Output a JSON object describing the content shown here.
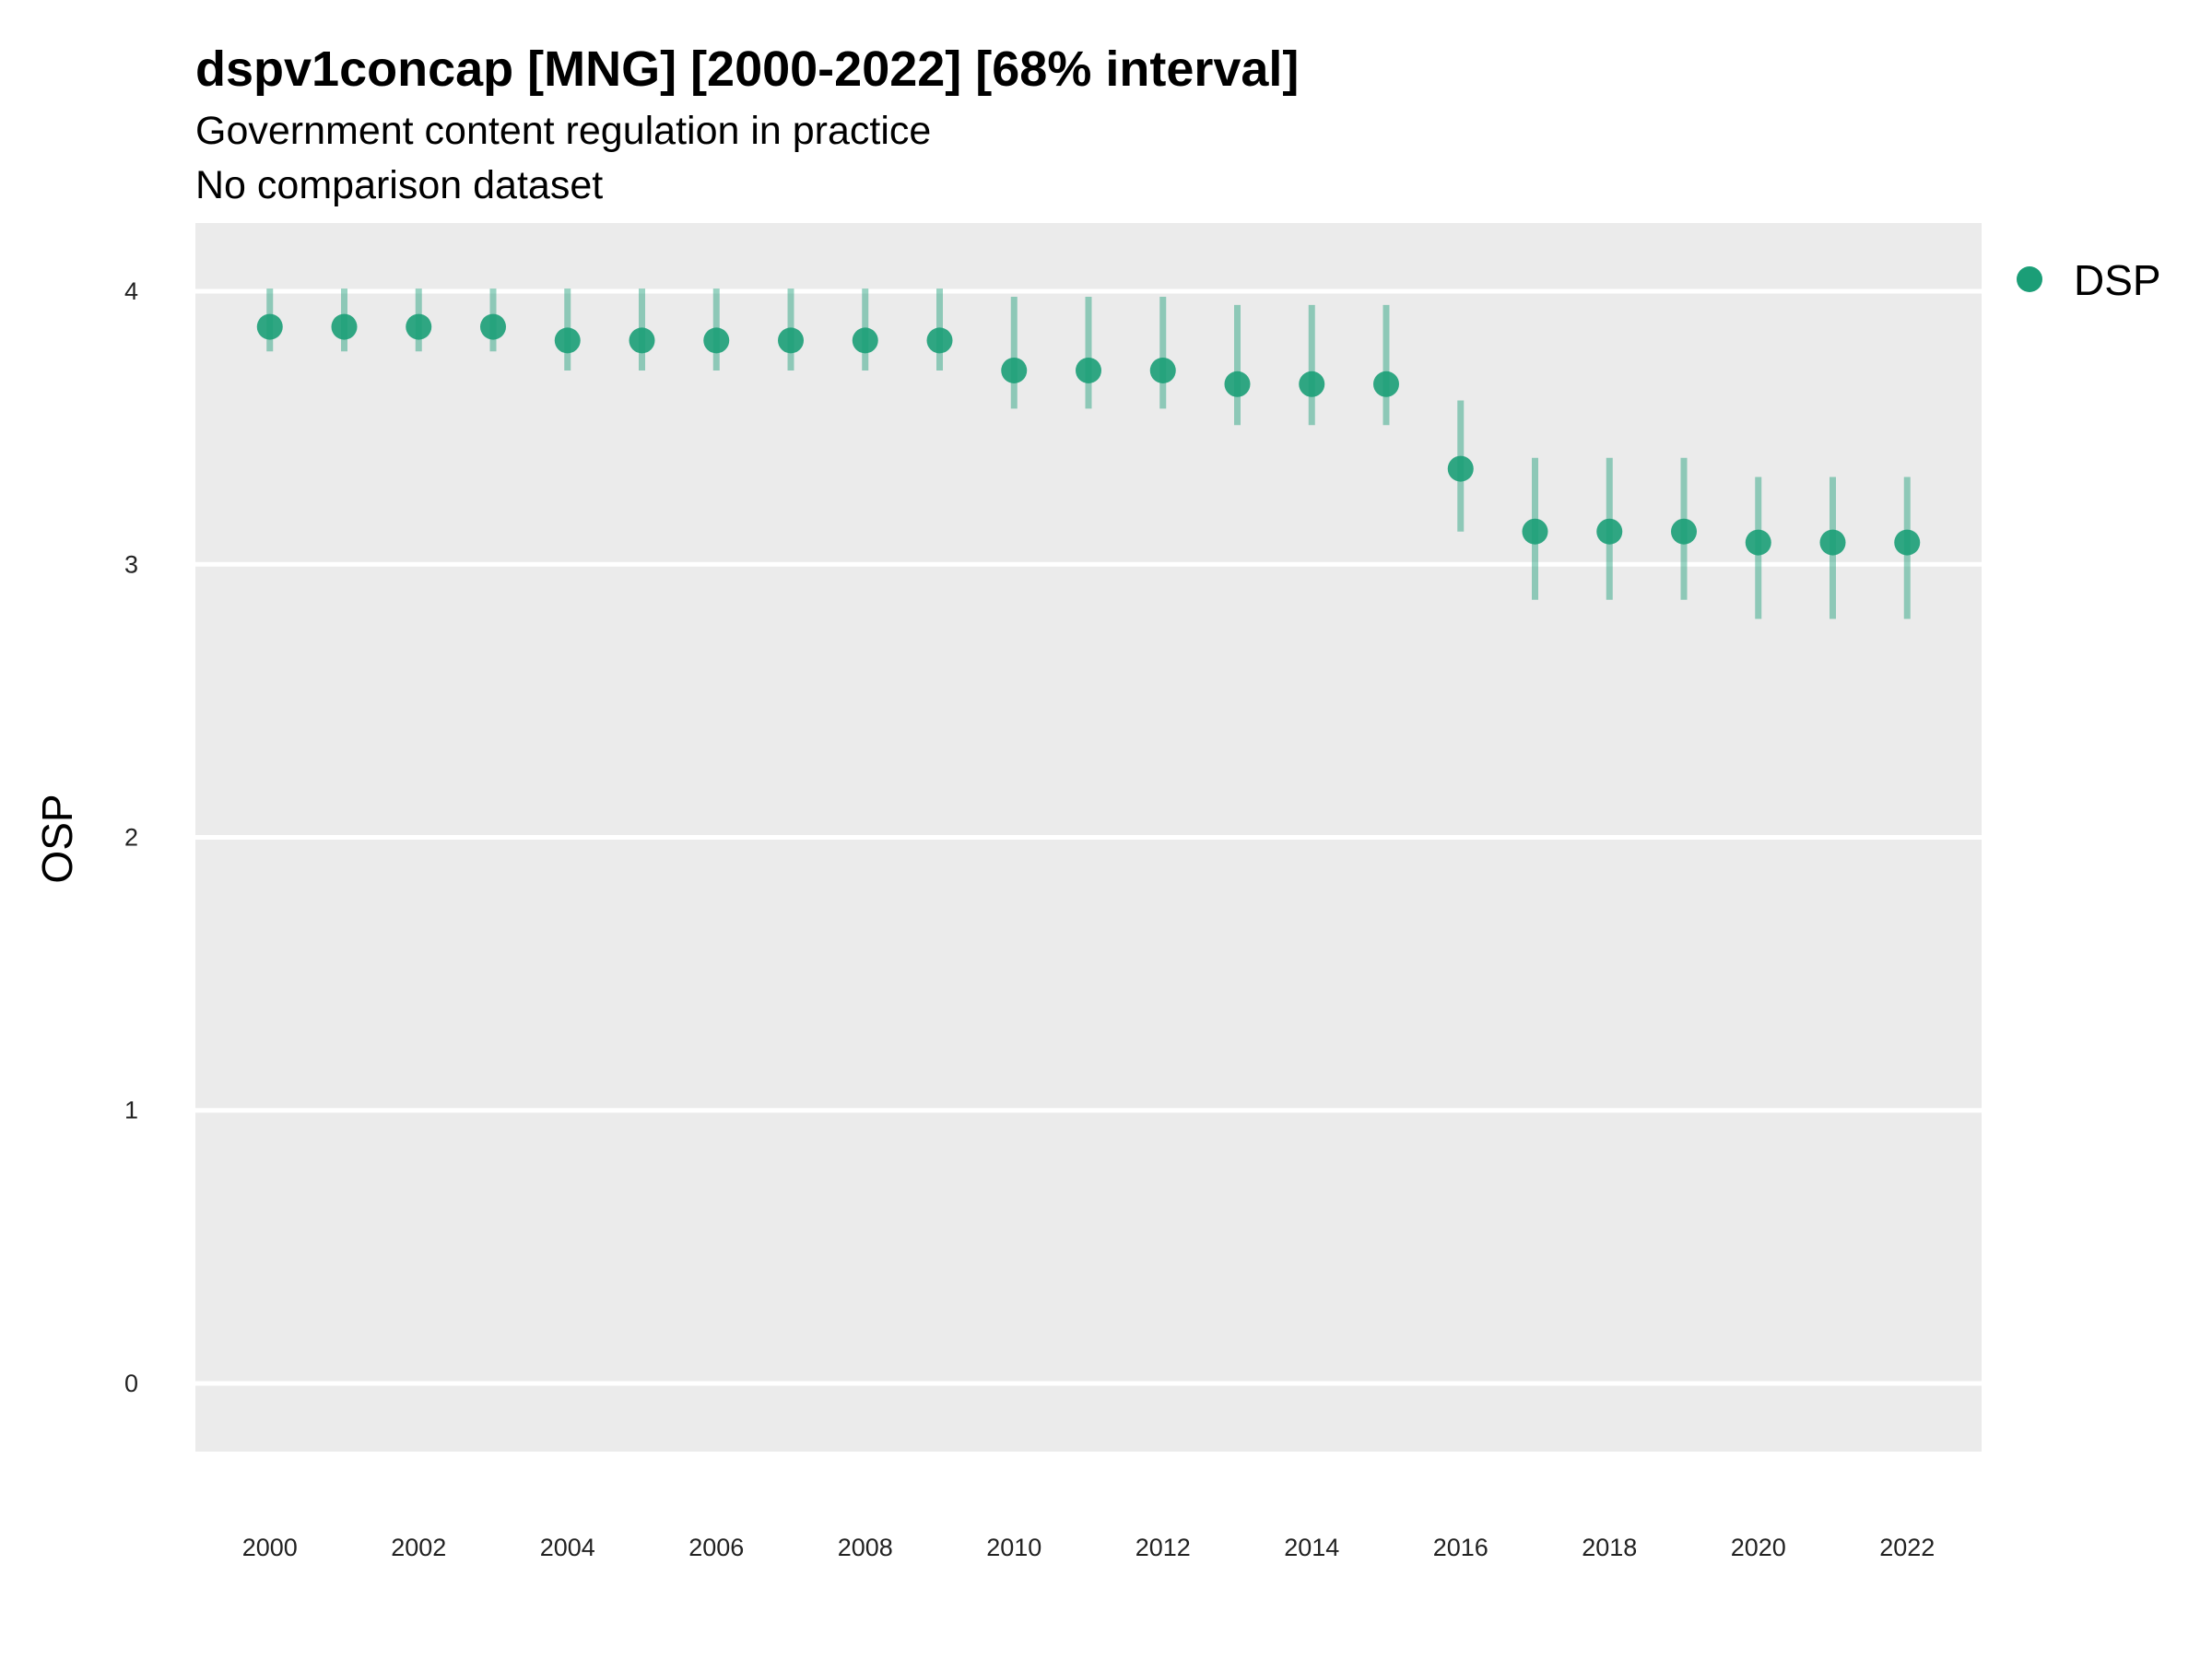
{
  "chart_data": {
    "type": "scatter",
    "title": "dspv1concap [MNG] [2000-2022] [68% interval]",
    "subtitle": "Government content regulation in practice",
    "subtitle2": "No comparison dataset",
    "xlabel": "",
    "ylabel": "OSP",
    "xlim": [
      1999,
      2023
    ],
    "ylim": [
      -0.25,
      4.25
    ],
    "x_ticks": [
      2000,
      2002,
      2004,
      2006,
      2008,
      2010,
      2012,
      2014,
      2016,
      2018,
      2020,
      2022
    ],
    "y_ticks": [
      0,
      1,
      2,
      3,
      4
    ],
    "grid": true,
    "legend_position": "right",
    "colors": {
      "series": "#1b9e77",
      "panel": "#ebebeb",
      "grid": "#ffffff"
    },
    "series": [
      {
        "name": "DSP",
        "x": [
          2000,
          2001,
          2002,
          2003,
          2004,
          2005,
          2006,
          2007,
          2008,
          2009,
          2010,
          2011,
          2012,
          2013,
          2014,
          2015,
          2016,
          2017,
          2018,
          2019,
          2020,
          2021,
          2022
        ],
        "values": [
          3.87,
          3.87,
          3.87,
          3.87,
          3.82,
          3.82,
          3.82,
          3.82,
          3.82,
          3.82,
          3.71,
          3.71,
          3.71,
          3.66,
          3.66,
          3.66,
          3.35,
          3.12,
          3.12,
          3.12,
          3.08,
          3.08,
          3.08
        ],
        "lower": [
          3.78,
          3.78,
          3.78,
          3.78,
          3.71,
          3.71,
          3.71,
          3.71,
          3.71,
          3.71,
          3.57,
          3.57,
          3.57,
          3.51,
          3.51,
          3.51,
          3.12,
          2.87,
          2.87,
          2.87,
          2.8,
          2.8,
          2.8
        ],
        "upper": [
          4.01,
          4.01,
          4.01,
          4.01,
          4.01,
          4.01,
          4.01,
          4.01,
          4.01,
          4.01,
          3.98,
          3.98,
          3.98,
          3.95,
          3.95,
          3.95,
          3.6,
          3.39,
          3.39,
          3.39,
          3.32,
          3.32,
          3.32
        ]
      }
    ]
  }
}
